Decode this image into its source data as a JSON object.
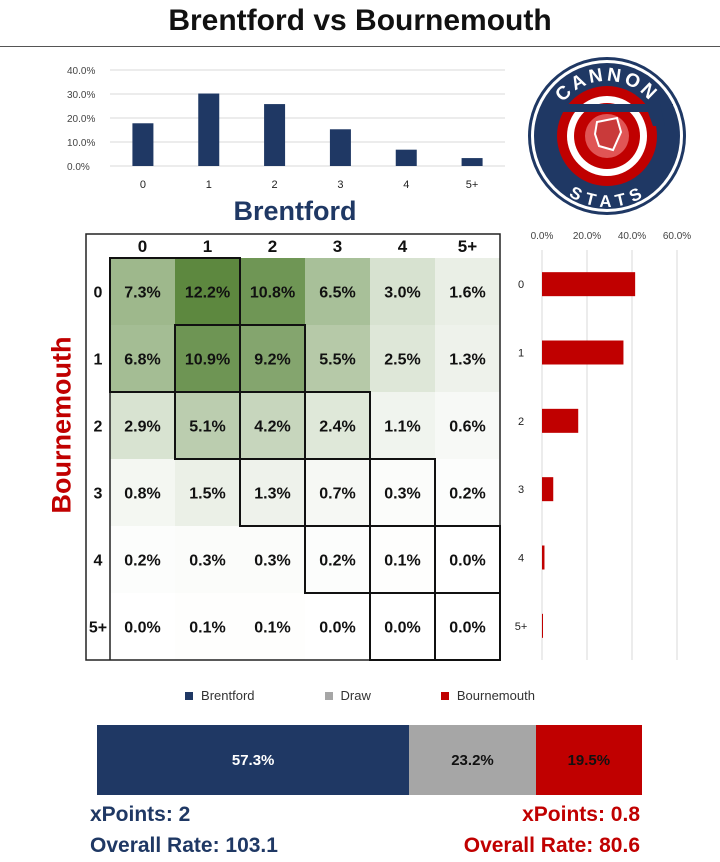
{
  "title": "Brentford vs Bournemouth",
  "logo": {
    "top_text": "CANNON",
    "bottom_text": "STATS"
  },
  "team_home": "Brentford",
  "team_away": "Bournemouth",
  "colors": {
    "home": "#1f3864",
    "draw": "#a6a6a6",
    "away": "#c00000",
    "grid_high": "#548235"
  },
  "chart_data": [
    {
      "type": "bar",
      "categories": [
        "0",
        "1",
        "2",
        "3",
        "4",
        "5+"
      ],
      "values": [
        17.8,
        30.2,
        25.8,
        15.3,
        6.8,
        3.3
      ],
      "yticks": [
        "0.0%",
        "10.0%",
        "20.0%",
        "30.0%",
        "40.0%"
      ],
      "ylim": [
        0,
        40
      ]
    },
    {
      "type": "bar",
      "orientation": "horizontal",
      "categories": [
        "0",
        "1",
        "2",
        "3",
        "4",
        "5+"
      ],
      "values": [
        41.4,
        36.2,
        16.1,
        5.0,
        1.1,
        0.2
      ],
      "xticks": [
        "0.0%",
        "20.0%",
        "40.0%",
        "60.0%"
      ],
      "xlim": [
        0,
        60
      ]
    },
    {
      "type": "heatmap",
      "x_categories": [
        "0",
        "1",
        "2",
        "3",
        "4",
        "5+"
      ],
      "y_categories": [
        "0",
        "1",
        "2",
        "3",
        "4",
        "5+"
      ],
      "values": [
        [
          7.3,
          12.2,
          10.8,
          6.5,
          3.0,
          1.6
        ],
        [
          6.8,
          10.9,
          9.2,
          5.5,
          2.5,
          1.3
        ],
        [
          2.9,
          5.1,
          4.2,
          2.4,
          1.1,
          0.6
        ],
        [
          0.8,
          1.5,
          1.3,
          0.7,
          0.3,
          0.2
        ],
        [
          0.2,
          0.3,
          0.3,
          0.2,
          0.1,
          0.0
        ],
        [
          0.0,
          0.1,
          0.1,
          0.0,
          0.0,
          0.0
        ]
      ],
      "labels": [
        [
          "7.3%",
          "12.2%",
          "10.8%",
          "6.5%",
          "3.0%",
          "1.6%"
        ],
        [
          "6.8%",
          "10.9%",
          "9.2%",
          "5.5%",
          "2.5%",
          "1.3%"
        ],
        [
          "2.9%",
          "5.1%",
          "4.2%",
          "2.4%",
          "1.1%",
          "0.6%"
        ],
        [
          "0.8%",
          "1.5%",
          "1.3%",
          "0.7%",
          "0.3%",
          "0.2%"
        ],
        [
          "0.2%",
          "0.3%",
          "0.3%",
          "0.2%",
          "0.1%",
          "0.0%"
        ],
        [
          "0.0%",
          "0.1%",
          "0.1%",
          "0.0%",
          "0.0%",
          "0.0%"
        ]
      ]
    },
    {
      "type": "bar",
      "orientation": "horizontal",
      "stacked": true,
      "series": [
        {
          "name": "Brentford",
          "value": 57.3,
          "label": "57.3%"
        },
        {
          "name": "Draw",
          "value": 23.2,
          "label": "23.2%"
        },
        {
          "name": "Bournemouth",
          "value": 19.5,
          "label": "19.5%"
        }
      ]
    }
  ],
  "stats": {
    "home_xpoints": "xPoints: 2",
    "home_rate": "Overall Rate: 103.1",
    "away_xpoints": "xPoints: 0.8",
    "away_rate": "Overall Rate: 80.6"
  }
}
